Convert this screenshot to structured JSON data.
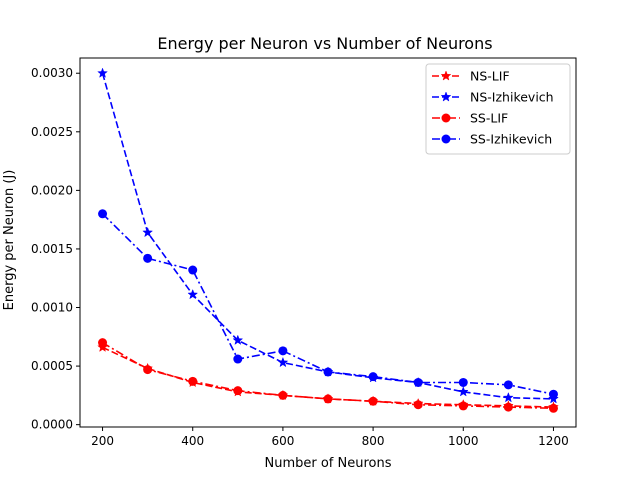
{
  "chart_data": {
    "type": "line",
    "title": "Energy per Neuron vs Number of Neurons",
    "xlabel": "Number of Neurons",
    "ylabel": "Energy per Neuron (J)",
    "xlim": [
      150,
      1250
    ],
    "ylim": [
      -2e-05,
      0.00313
    ],
    "xticks": [
      200,
      400,
      600,
      800,
      1000,
      1200
    ],
    "xtick_labels": [
      "200",
      "400",
      "600",
      "800",
      "1000",
      "1200"
    ],
    "yticks": [
      0.0,
      0.0005,
      0.001,
      0.0015,
      0.002,
      0.0025,
      0.003
    ],
    "ytick_labels": [
      "0.0000",
      "0.0005",
      "0.0010",
      "0.0015",
      "0.0020",
      "0.0025",
      "0.0030"
    ],
    "grid": false,
    "legend_position": "top-right",
    "x": [
      200,
      300,
      400,
      500,
      600,
      700,
      800,
      900,
      1000,
      1100,
      1200
    ],
    "series": [
      {
        "name": "NS-LIF",
        "color": "#ff0000",
        "linestyle": "dashed",
        "marker": "star",
        "values": [
          0.00066,
          0.00048,
          0.00036,
          0.00028,
          0.00025,
          0.00022,
          0.0002,
          0.00018,
          0.00017,
          0.00016,
          0.00015
        ]
      },
      {
        "name": "NS-Izhikevich",
        "color": "#0000ff",
        "linestyle": "dashed",
        "marker": "star",
        "values": [
          0.003,
          0.00164,
          0.00111,
          0.00072,
          0.00053,
          0.00045,
          0.0004,
          0.00036,
          0.00028,
          0.00023,
          0.00022
        ]
      },
      {
        "name": "SS-LIF",
        "color": "#ff0000",
        "linestyle": "dashdot",
        "marker": "circle",
        "values": [
          0.0007,
          0.00047,
          0.00037,
          0.00029,
          0.00025,
          0.00022,
          0.0002,
          0.00017,
          0.00016,
          0.00015,
          0.00014
        ]
      },
      {
        "name": "SS-Izhikevich",
        "color": "#0000ff",
        "linestyle": "dashdot",
        "marker": "circle",
        "values": [
          0.0018,
          0.00142,
          0.00132,
          0.00056,
          0.00063,
          0.00045,
          0.00041,
          0.00036,
          0.00036,
          0.00034,
          0.00026
        ]
      }
    ]
  }
}
